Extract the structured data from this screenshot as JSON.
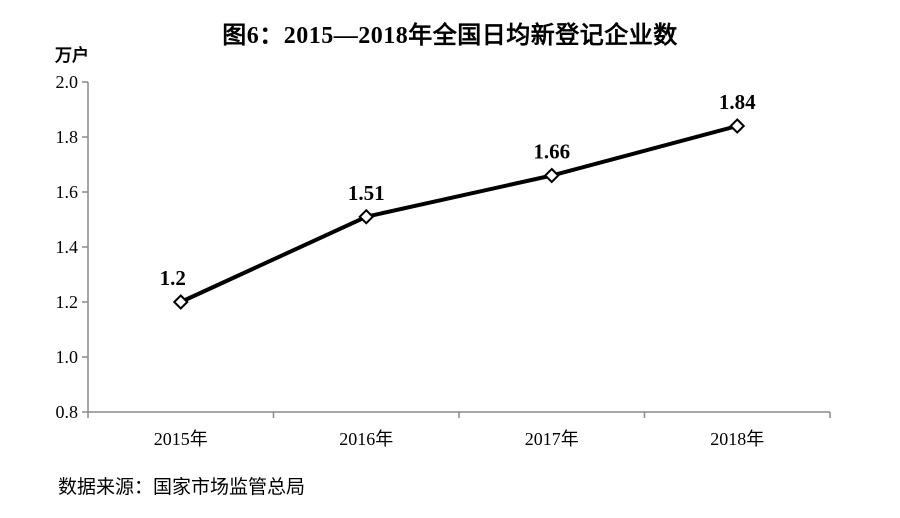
{
  "chart": {
    "title": "图6：2015—2018年全国日均新登记企业数",
    "unit_label": "万户",
    "source": "数据来源：国家市场监管总局"
  },
  "chart_data": {
    "type": "line",
    "title": "图6：2015—2018年全国日均新登记企业数",
    "categories": [
      "2015年",
      "2016年",
      "2017年",
      "2018年"
    ],
    "values": [
      1.2,
      1.51,
      1.66,
      1.84
    ],
    "point_labels": [
      "1.2",
      "1.51",
      "1.66",
      "1.84"
    ],
    "series_name": "全国日均新登记企业数",
    "xlabel": "",
    "ylabel": "万户",
    "ylim": [
      0.8,
      2.0
    ],
    "yticks": [
      0.8,
      1.0,
      1.2,
      1.4,
      1.6,
      1.8,
      2.0
    ],
    "grid": false,
    "legend_position": "none",
    "source": "数据来源：国家市场监管总局",
    "colors": {
      "line": "#000000",
      "marker_fill": "#ffffff",
      "marker_stroke": "#000000",
      "axis": "#8a8a8a",
      "text": "#000000",
      "background": "#ffffff"
    }
  }
}
